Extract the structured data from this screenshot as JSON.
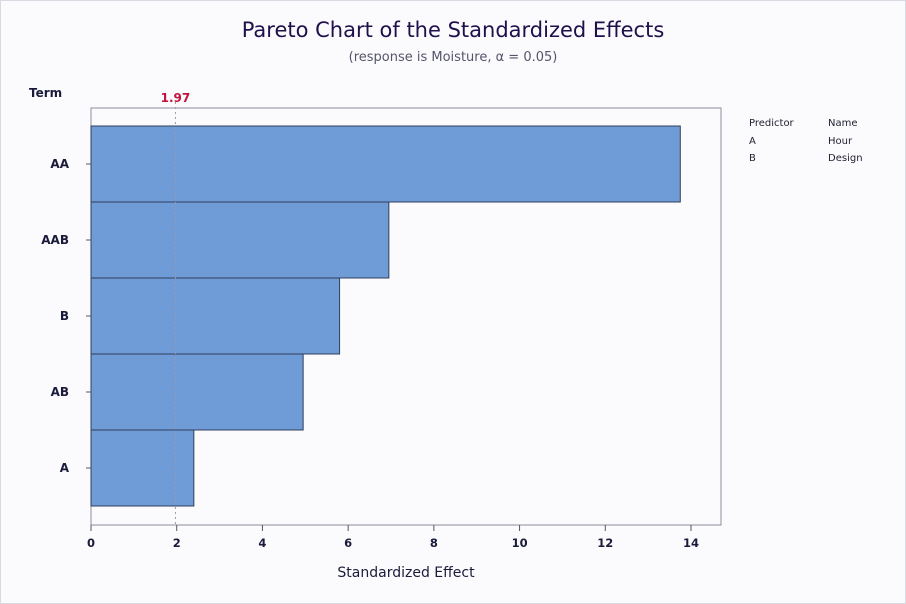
{
  "chart_data": {
    "type": "bar",
    "orientation": "horizontal",
    "title": "Pareto Chart of the Standardized Effects",
    "subtitle": "(response is Moisture, α = 0.05)",
    "category_axis_title": "Term",
    "xlabel": "Standardized Effect",
    "categories": [
      "AA",
      "AAB",
      "B",
      "AB",
      "A"
    ],
    "values": [
      13.75,
      6.95,
      5.8,
      4.95,
      2.4
    ],
    "xlim": [
      0,
      14.7
    ],
    "xticks": [
      0,
      2,
      4,
      6,
      8,
      10,
      12,
      14
    ],
    "reference_line": {
      "value": 1.97,
      "label": "1.97",
      "color": "#c0143c"
    },
    "grid": false,
    "bar_color": "#6f9bd6",
    "bar_edge_color": "#2f3f5a",
    "legend_placement": "top-right",
    "legend": {
      "headers": [
        "Predictor",
        "Name"
      ],
      "rows": [
        [
          "A",
          "Hour"
        ],
        [
          "B",
          "Design"
        ]
      ]
    }
  }
}
